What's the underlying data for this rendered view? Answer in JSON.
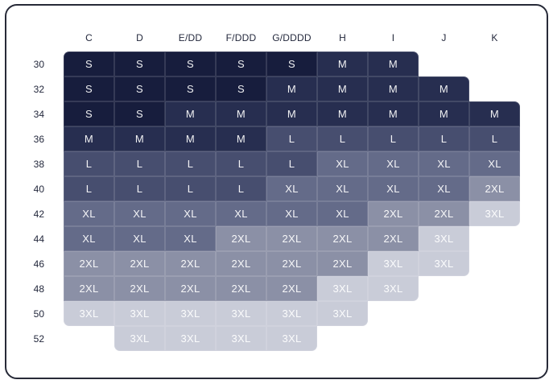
{
  "chart_data": {
    "type": "heatmap",
    "title": "",
    "xlabel": "",
    "ylabel": "",
    "legend_position": "none",
    "grid": "off",
    "x_categories": [
      "C",
      "D",
      "E/DD",
      "F/DDD",
      "G/DDDD",
      "H",
      "I",
      "J",
      "K"
    ],
    "y_categories": [
      "30",
      "32",
      "34",
      "36",
      "38",
      "40",
      "42",
      "44",
      "46",
      "48",
      "50",
      "52"
    ],
    "values": [
      [
        "S",
        "S",
        "S",
        "S",
        "S",
        "M",
        "M",
        null,
        null
      ],
      [
        "S",
        "S",
        "S",
        "S",
        "M",
        "M",
        "M",
        "M",
        null
      ],
      [
        "S",
        "S",
        "M",
        "M",
        "M",
        "M",
        "M",
        "M",
        "M"
      ],
      [
        "M",
        "M",
        "M",
        "M",
        "L",
        "L",
        "L",
        "L",
        "L"
      ],
      [
        "L",
        "L",
        "L",
        "L",
        "L",
        "XL",
        "XL",
        "XL",
        "XL"
      ],
      [
        "L",
        "L",
        "L",
        "L",
        "XL",
        "XL",
        "XL",
        "XL",
        "2XL"
      ],
      [
        "XL",
        "XL",
        "XL",
        "XL",
        "XL",
        "XL",
        "2XL",
        "2XL",
        "3XL"
      ],
      [
        "XL",
        "XL",
        "XL",
        "2XL",
        "2XL",
        "2XL",
        "2XL",
        "3XL",
        null
      ],
      [
        "2XL",
        "2XL",
        "2XL",
        "2XL",
        "2XL",
        "2XL",
        "3XL",
        "3XL",
        null
      ],
      [
        "2XL",
        "2XL",
        "2XL",
        "2XL",
        "2XL",
        "3XL",
        "3XL",
        null,
        null
      ],
      [
        "3XL",
        "3XL",
        "3XL",
        "3XL",
        "3XL",
        "3XL",
        null,
        null,
        null
      ],
      [
        null,
        "3XL",
        "3XL",
        "3XL",
        "3XL",
        null,
        null,
        null,
        null
      ]
    ],
    "color_scale": {
      "S": "#171d3d",
      "M": "#272e50",
      "L": "#474e6f",
      "XL": "#646b89",
      "2XL": "#8b90a6",
      "3XL": "#c9ccd8"
    }
  },
  "colors": {
    "card_border": "#272a38",
    "card_background": "#ffffff",
    "cell_text": "#ffffff",
    "label_text": "#23283c"
  }
}
